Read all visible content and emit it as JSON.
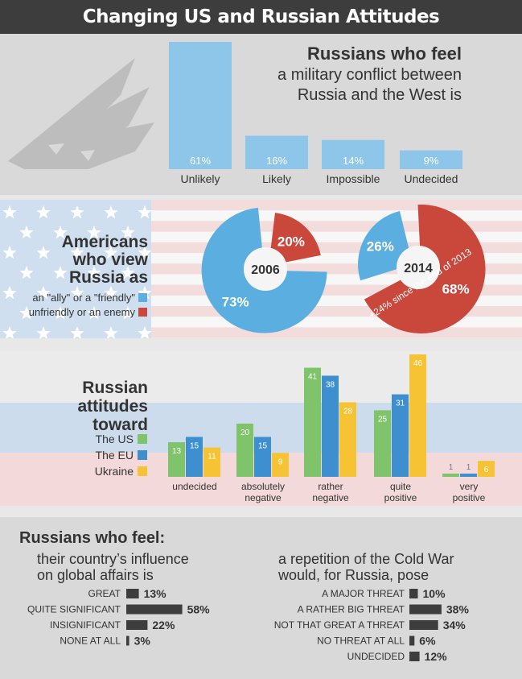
{
  "header": {
    "title": "Changing US and Russian Attitudes"
  },
  "colors": {
    "blue": "#5baee0",
    "red": "#c9473b",
    "green": "#7fc36a",
    "dblue": "#3e8fd0",
    "yellow": "#f5c333",
    "dark": "#3d3d3d",
    "bar_light": "#8dc6e8"
  },
  "icons": {
    "section1": "missile-icon",
    "section2": "us-flag-icon"
  },
  "section1": {
    "title": "Russians who feel",
    "subtitle_line1": "a military conflict between",
    "subtitle_line2": "Russia and the West is"
  },
  "section2": {
    "title_lines": [
      "Americans",
      "who view",
      "Russia as"
    ],
    "legend": [
      {
        "label": "an \"ally\" or a \"friendly\"",
        "color": "#5baee0"
      },
      {
        "label": "unfriendly or an enemy",
        "color": "#c9473b"
      }
    ],
    "annotation": "+24% since the end of 2013"
  },
  "section3": {
    "title_lines": [
      "Russian",
      "attitudes",
      "toward"
    ],
    "legend": [
      {
        "label": "The US",
        "color": "#7fc36a"
      },
      {
        "label": "The EU",
        "color": "#3e8fd0"
      },
      {
        "label": "Ukraine",
        "color": "#f5c333"
      }
    ]
  },
  "section4": {
    "title": "Russians who feel:",
    "left_sub": [
      "their country’s influence",
      "on global affairs is"
    ],
    "right_sub": [
      "a repetition of the Cold War",
      "would, for Russia, pose"
    ]
  },
  "chart_data": [
    {
      "type": "bar",
      "title": "Russians who feel a military conflict between Russia and the West is",
      "categories": [
        "Unlikely",
        "Likely",
        "Impossible",
        "Undecided"
      ],
      "values": [
        61,
        16,
        14,
        9
      ],
      "value_labels": [
        "61%",
        "16%",
        "14%",
        "9%"
      ],
      "ylim": [
        0,
        61
      ]
    },
    {
      "type": "pie",
      "center_label": "2006",
      "categories": [
        "an \"ally\" or a \"friendly\"",
        "unfriendly or an enemy"
      ],
      "values": [
        73,
        20
      ],
      "value_labels": [
        "73%",
        "20%"
      ]
    },
    {
      "type": "pie",
      "center_label": "2014",
      "categories": [
        "an \"ally\" or a \"friendly\"",
        "unfriendly or an enemy"
      ],
      "values": [
        26,
        68
      ],
      "value_labels": [
        "26%",
        "68%"
      ]
    },
    {
      "type": "bar",
      "categories": [
        "undecided",
        "absolutely negative",
        "rather negative",
        "quite positive",
        "very positive"
      ],
      "series": [
        {
          "name": "The US",
          "values": [
            13,
            20,
            41,
            25,
            1
          ]
        },
        {
          "name": "The EU",
          "values": [
            15,
            15,
            38,
            31,
            1
          ]
        },
        {
          "name": "Ukraine",
          "values": [
            11,
            9,
            28,
            46,
            6
          ]
        }
      ],
      "ylim": [
        0,
        46
      ]
    },
    {
      "type": "bar",
      "orientation": "horizontal",
      "categories": [
        "GREAT",
        "QUITE SIGNIFICANT",
        "INSIGNIFICANT",
        "NONE AT ALL"
      ],
      "values": [
        13,
        58,
        22,
        3
      ],
      "value_labels": [
        "13%",
        "58%",
        "22%",
        "3%"
      ]
    },
    {
      "type": "bar",
      "orientation": "horizontal",
      "categories": [
        "A MAJOR THREAT",
        "A RATHER BIG THREAT",
        "NOT THAT GREAT A THREAT",
        "NO THREAT AT ALL",
        "UNDECIDED"
      ],
      "values": [
        10,
        38,
        34,
        6,
        12
      ],
      "value_labels": [
        "10%",
        "38%",
        "34%",
        "6%",
        "12%"
      ]
    }
  ]
}
